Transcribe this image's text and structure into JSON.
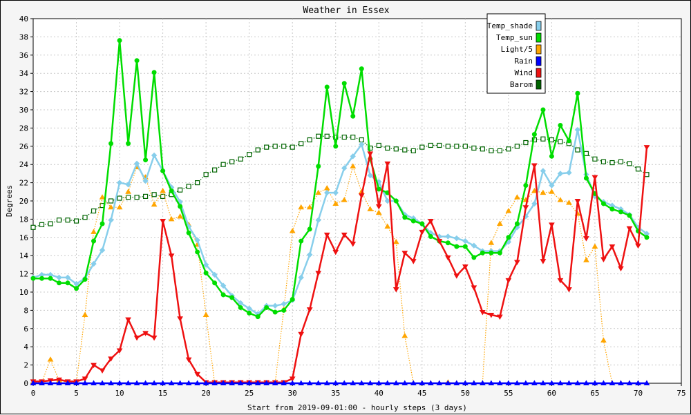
{
  "chart_data": {
    "type": "line",
    "title": "Weather in Essex",
    "xlabel": "Start from 2019-09-01:00 - hourly steps (3 days)",
    "ylabel": "Degrees",
    "xlim": [
      0,
      75
    ],
    "ylim": [
      0,
      40
    ],
    "x_ticks": [
      "0",
      "5",
      "10",
      "15",
      "20",
      "25",
      "30",
      "35",
      "40",
      "45",
      "50",
      "55",
      "60",
      "65",
      "70",
      "75"
    ],
    "y_ticks": [
      "0",
      "2",
      "4",
      "6",
      "8",
      "10",
      "12",
      "14",
      "16",
      "18",
      "20",
      "22",
      "24",
      "26",
      "28",
      "30",
      "32",
      "34",
      "36",
      "38",
      "40"
    ],
    "grid": true,
    "legend_position": "top-right",
    "series": [
      {
        "name": "Temp_shade",
        "color": "#87ceeb",
        "style": "solid",
        "marker": "diamond",
        "values": [
          11.6,
          11.9,
          11.9,
          11.6,
          11.6,
          10.9,
          11.5,
          13.1,
          14.6,
          17.9,
          22.0,
          21.8,
          24.1,
          22.2,
          25.0,
          23.3,
          21.5,
          19.9,
          17.2,
          15.7,
          13.0,
          11.9,
          10.7,
          9.6,
          8.8,
          8.2,
          7.6,
          8.5,
          8.5,
          8.7,
          9.1,
          11.6,
          14.1,
          17.9,
          20.9,
          20.9,
          23.6,
          24.9,
          26.2,
          22.8,
          22.1,
          20.0,
          20.0,
          18.5,
          18.1,
          17.5,
          16.5,
          16.1,
          16.1,
          15.9,
          15.6,
          15.1,
          14.5,
          14.5,
          14.5,
          15.5,
          17.1,
          18.3,
          19.7,
          23.3,
          21.7,
          23.0,
          23.1,
          27.8,
          22.9,
          20.5,
          19.9,
          19.5,
          19.1,
          18.5,
          17.1,
          16.4
        ]
      },
      {
        "name": "Temp_sun",
        "color": "#00dd00",
        "style": "solid",
        "marker": "circle",
        "values": [
          11.5,
          11.5,
          11.5,
          11.0,
          11.0,
          10.4,
          11.4,
          15.6,
          17.5,
          26.3,
          37.6,
          26.3,
          35.4,
          24.5,
          34.1,
          23.3,
          21.1,
          19.4,
          16.5,
          14.4,
          12.1,
          11.0,
          9.7,
          9.4,
          8.3,
          7.7,
          7.3,
          8.3,
          7.8,
          8.0,
          9.2,
          15.6,
          16.9,
          23.8,
          32.5,
          26.0,
          32.9,
          29.3,
          34.5,
          24.6,
          21.3,
          20.9,
          20.0,
          18.2,
          17.8,
          17.5,
          16.1,
          15.6,
          15.4,
          15.0,
          15.0,
          13.8,
          14.3,
          14.3,
          14.3,
          16.0,
          17.5,
          21.7,
          27.3,
          30.0,
          24.9,
          28.3,
          26.6,
          31.8,
          22.5,
          20.8,
          19.7,
          19.1,
          18.8,
          18.4,
          16.7,
          16.0
        ]
      },
      {
        "name": "Light/5",
        "color": "#ffa500",
        "style": "dotted",
        "marker": "triangle-up",
        "values": [
          0.1,
          0.1,
          2.6,
          0.3,
          0.1,
          0.1,
          7.5,
          16.6,
          20.4,
          19.3,
          19.3,
          21.0,
          23.7,
          22.6,
          19.6,
          21.1,
          18.0,
          18.3,
          17.4,
          15.2,
          7.5,
          0,
          0,
          0,
          0,
          0,
          0,
          0,
          0,
          8.1,
          16.7,
          19.3,
          19.3,
          20.9,
          21.4,
          19.7,
          20.1,
          23.8,
          21.0,
          19.1,
          18.7,
          17.2,
          15.5,
          5.2,
          0,
          0,
          0,
          0,
          0.1,
          0,
          0,
          0,
          0,
          15.4,
          17.5,
          18.9,
          20.4,
          20.1,
          21.1,
          20.9,
          21.0,
          20.1,
          19.8,
          18.6,
          13.5,
          15.0,
          4.7,
          0,
          0,
          0,
          0,
          0
        ]
      },
      {
        "name": "Rain",
        "color": "#0000ff",
        "style": "solid",
        "marker": "triangle-up",
        "values": [
          0,
          0,
          0,
          0,
          0,
          0,
          0,
          0,
          0,
          0,
          0,
          0,
          0,
          0,
          0,
          0,
          0,
          0,
          0,
          0,
          0,
          0,
          0,
          0,
          0,
          0,
          0,
          0,
          0,
          0,
          0,
          0,
          0,
          0,
          0,
          0,
          0,
          0,
          0,
          0,
          0,
          0,
          0,
          0,
          0,
          0,
          0,
          0,
          0,
          0,
          0,
          0,
          0,
          0,
          0,
          0,
          0,
          0,
          0,
          0,
          0,
          0,
          0,
          0,
          0,
          0,
          0,
          0,
          0,
          0,
          0,
          0
        ]
      },
      {
        "name": "Wind",
        "color": "#ee1111",
        "style": "solid",
        "marker": "triangle-down",
        "values": [
          0.2,
          0.2,
          0.3,
          0.4,
          0.2,
          0.2,
          0.5,
          2.0,
          1.4,
          2.7,
          3.6,
          7.0,
          5.0,
          5.5,
          5.0,
          17.8,
          14.0,
          7.1,
          2.6,
          1.0,
          0.1,
          0.1,
          0.1,
          0.1,
          0.1,
          0.1,
          0.1,
          0.1,
          0.1,
          0.1,
          0.5,
          5.4,
          8.1,
          12.1,
          16.3,
          14.4,
          16.3,
          15.3,
          20.6,
          25.2,
          19.4,
          24.1,
          10.3,
          14.3,
          13.4,
          16.6,
          17.8,
          15.6,
          13.8,
          11.8,
          12.8,
          10.5,
          7.8,
          7.5,
          7.3,
          11.3,
          13.3,
          19.3,
          23.9,
          13.4,
          17.4,
          11.3,
          10.3,
          20.0,
          15.9,
          22.6,
          13.6,
          15.0,
          12.6,
          17.0,
          15.1,
          25.9
        ]
      },
      {
        "name": "Barom",
        "color": "#006400",
        "style": "dotted",
        "marker": "square",
        "values": [
          17.1,
          17.4,
          17.5,
          17.9,
          17.9,
          17.8,
          18.2,
          18.9,
          19.5,
          20.0,
          20.3,
          20.4,
          20.4,
          20.5,
          20.7,
          20.5,
          20.7,
          21.2,
          21.6,
          22.0,
          22.9,
          23.4,
          24.0,
          24.3,
          24.6,
          25.1,
          25.6,
          25.9,
          26.0,
          26.0,
          25.9,
          26.3,
          26.7,
          27.1,
          27.1,
          27.0,
          27.0,
          27.0,
          26.7,
          25.8,
          26.1,
          25.8,
          25.7,
          25.6,
          25.5,
          25.9,
          26.1,
          26.1,
          26.0,
          26.0,
          26.0,
          25.8,
          25.7,
          25.5,
          25.5,
          25.7,
          26.0,
          26.4,
          26.7,
          26.8,
          26.7,
          26.5,
          26.3,
          25.6,
          25.2,
          24.6,
          24.3,
          24.2,
          24.3,
          24.1,
          23.5,
          22.9
        ]
      }
    ]
  }
}
